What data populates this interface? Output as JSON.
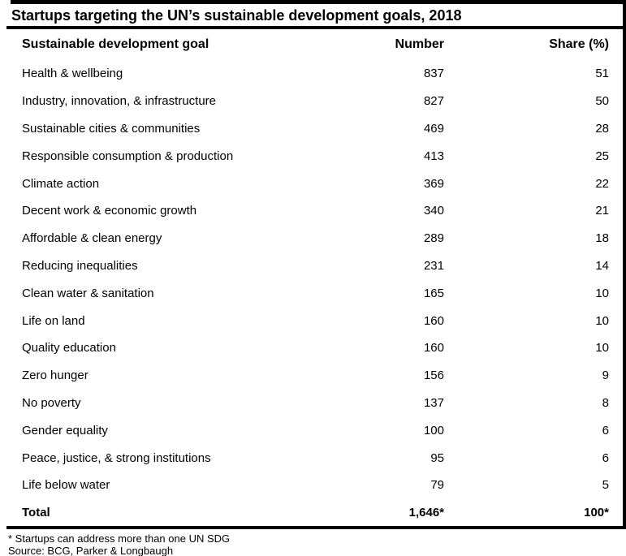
{
  "title": "Startups targeting the UN’s sustainable development goals, 2018",
  "chart_data": {
    "type": "table",
    "title": "Startups targeting the UN’s sustainable development goals, 2018",
    "columns": [
      "Sustainable development goal",
      "Number",
      "Share (%)"
    ],
    "rows": [
      [
        "Health & wellbeing",
        837,
        51
      ],
      [
        "Industry, innovation, & infrastructure",
        827,
        50
      ],
      [
        "Sustainable cities & communities",
        469,
        28
      ],
      [
        "Responsible consumption & production",
        413,
        25
      ],
      [
        "Climate action",
        369,
        22
      ],
      [
        "Decent work & economic growth",
        340,
        21
      ],
      [
        "Affordable & clean energy",
        289,
        18
      ],
      [
        "Reducing inequalities",
        231,
        14
      ],
      [
        "Clean water & sanitation",
        165,
        10
      ],
      [
        "Life on land",
        160,
        10
      ],
      [
        "Quality education",
        160,
        10
      ],
      [
        "Zero hunger",
        156,
        9
      ],
      [
        "No poverty",
        137,
        8
      ],
      [
        "Gender equality",
        100,
        6
      ],
      [
        "Peace, justice, & strong institutions",
        95,
        6
      ],
      [
        "Life below water",
        79,
        5
      ]
    ],
    "total": [
      "Total",
      "1,646*",
      "100*"
    ]
  },
  "footnotes": {
    "note": "* Startups can address more than one UN SDG",
    "source": "Source: BCG, Parker & Longbaugh"
  },
  "colors": {
    "background": "#ffffff",
    "text": "#000000",
    "rule": "#000000"
  }
}
